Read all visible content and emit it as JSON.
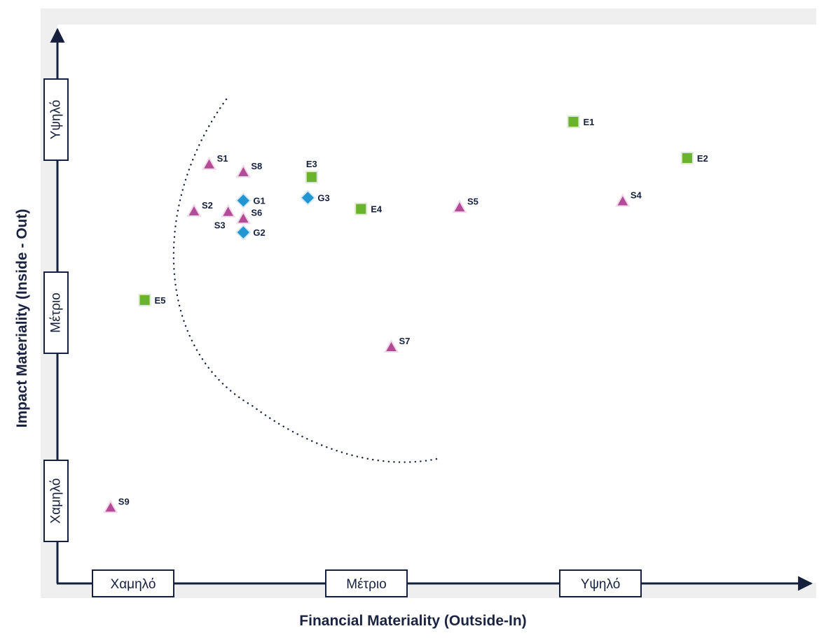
{
  "chart_data": {
    "type": "scatter",
    "title": "",
    "xlabel": "Financial Materiality (Outside-In)",
    "ylabel": "Impact Materiality (Inside - Out)",
    "xlim": [
      0,
      100
    ],
    "ylim": [
      0,
      100
    ],
    "x_ticks": [
      "Χαμηλό",
      "Μέτριο",
      "Υψηλό"
    ],
    "y_ticks": [
      "Χαμηλό",
      "Μέτριο",
      "Υψηλό"
    ],
    "grid": false,
    "legend": "none",
    "annotations": [
      "dotted arc marking the material threshold"
    ],
    "colors": {
      "E": "#6ab42d",
      "S": "#b54a96",
      "G": "#2196d3",
      "axis": "#16203e",
      "panel": "#f0f0f0"
    },
    "series": [
      {
        "marker": "square",
        "points": [
          {
            "label": "E1",
            "x": 68.0,
            "y": 82.6
          },
          {
            "label": "E2",
            "x": 83.0,
            "y": 76.1
          },
          {
            "label": "E3",
            "x": 33.5,
            "y": 72.7
          },
          {
            "label": "E4",
            "x": 40.0,
            "y": 67.0
          },
          {
            "label": "E5",
            "x": 11.5,
            "y": 50.7
          }
        ]
      },
      {
        "marker": "triangle",
        "points": [
          {
            "label": "S1",
            "x": 20.0,
            "y": 75.0
          },
          {
            "label": "S2",
            "x": 18.0,
            "y": 66.6
          },
          {
            "label": "S3",
            "x": 22.5,
            "y": 66.5
          },
          {
            "label": "S4",
            "x": 74.5,
            "y": 68.4
          },
          {
            "label": "S5",
            "x": 53.0,
            "y": 67.3
          },
          {
            "label": "S6",
            "x": 24.5,
            "y": 65.3
          },
          {
            "label": "S7",
            "x": 44.0,
            "y": 42.3
          },
          {
            "label": "S8",
            "x": 24.5,
            "y": 73.6
          },
          {
            "label": "S9",
            "x": 7.0,
            "y": 13.6
          }
        ]
      },
      {
        "marker": "diamond",
        "points": [
          {
            "label": "G1",
            "x": 24.5,
            "y": 68.5
          },
          {
            "label": "G2",
            "x": 24.5,
            "y": 62.8
          },
          {
            "label": "G3",
            "x": 33.0,
            "y": 69.0
          }
        ]
      }
    ]
  }
}
